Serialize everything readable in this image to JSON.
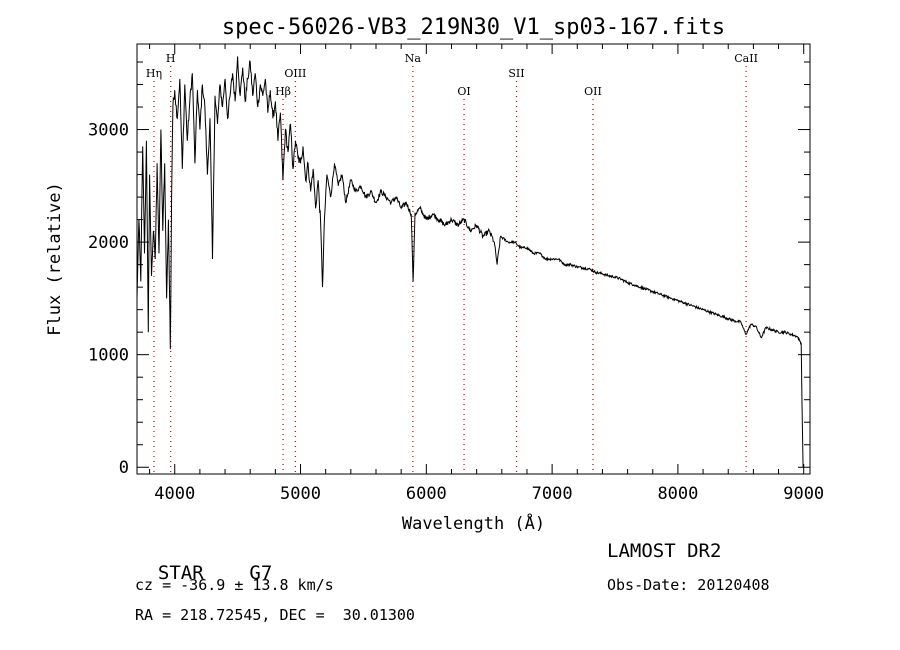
{
  "chart_data": {
    "type": "line",
    "title": "spec-56026-VB3_219N30_V1_sp03-167.fits",
    "xlabel": "Wavelength (Å)",
    "ylabel": "Flux (relative)",
    "xlim": [
      3700,
      9050
    ],
    "ylim": [
      -60,
      3760
    ],
    "x_ticks": [
      4000,
      5000,
      6000,
      7000,
      8000,
      9000
    ],
    "x_tick_labels": [
      "4000",
      "5000",
      "6000",
      "7000",
      "8000",
      "9000"
    ],
    "y_ticks": [
      0,
      1000,
      2000,
      3000
    ],
    "y_tick_labels": [
      "0",
      "1000",
      "2000",
      "3000"
    ],
    "line_color": "#000000",
    "marker_color": "#cc0000",
    "series": [
      {
        "name": "flux",
        "points": [
          [
            3700,
            1500
          ],
          [
            3715,
            2200
          ],
          [
            3730,
            1650
          ],
          [
            3745,
            2850
          ],
          [
            3760,
            1900
          ],
          [
            3775,
            2900
          ],
          [
            3790,
            1200
          ],
          [
            3800,
            2600
          ],
          [
            3815,
            1700
          ],
          [
            3830,
            2100
          ],
          [
            3845,
            1850
          ],
          [
            3860,
            2700
          ],
          [
            3875,
            1900
          ],
          [
            3890,
            3000
          ],
          [
            3905,
            2100
          ],
          [
            3920,
            2700
          ],
          [
            3935,
            1500
          ],
          [
            3950,
            2200
          ],
          [
            3965,
            1050
          ],
          [
            3975,
            2400
          ],
          [
            3985,
            3200
          ],
          [
            4000,
            3350
          ],
          [
            4020,
            3100
          ],
          [
            4040,
            3450
          ],
          [
            4060,
            2650
          ],
          [
            4080,
            3400
          ],
          [
            4100,
            2900
          ],
          [
            4120,
            3250
          ],
          [
            4140,
            3500
          ],
          [
            4160,
            2700
          ],
          [
            4180,
            3350
          ],
          [
            4200,
            3000
          ],
          [
            4220,
            3400
          ],
          [
            4240,
            3200
          ],
          [
            4260,
            2600
          ],
          [
            4280,
            3100
          ],
          [
            4300,
            1850
          ],
          [
            4320,
            3300
          ],
          [
            4340,
            3050
          ],
          [
            4360,
            3400
          ],
          [
            4380,
            3200
          ],
          [
            4400,
            3450
          ],
          [
            4420,
            3100
          ],
          [
            4440,
            3300
          ],
          [
            4460,
            3500
          ],
          [
            4480,
            3250
          ],
          [
            4500,
            3650
          ],
          [
            4520,
            3300
          ],
          [
            4540,
            3550
          ],
          [
            4560,
            3250
          ],
          [
            4580,
            3450
          ],
          [
            4600,
            3600
          ],
          [
            4620,
            3300
          ],
          [
            4640,
            3500
          ],
          [
            4660,
            3200
          ],
          [
            4680,
            3400
          ],
          [
            4700,
            3300
          ],
          [
            4720,
            3450
          ],
          [
            4740,
            3150
          ],
          [
            4760,
            3350
          ],
          [
            4780,
            3100
          ],
          [
            4800,
            3250
          ],
          [
            4820,
            2900
          ],
          [
            4840,
            3150
          ],
          [
            4860,
            2550
          ],
          [
            4880,
            3000
          ],
          [
            4900,
            2800
          ],
          [
            4920,
            3050
          ],
          [
            4940,
            2650
          ],
          [
            4960,
            2900
          ],
          [
            4980,
            2750
          ],
          [
            5000,
            2700
          ],
          [
            5020,
            2850
          ],
          [
            5040,
            2550
          ],
          [
            5060,
            2700
          ],
          [
            5080,
            2450
          ],
          [
            5100,
            2650
          ],
          [
            5120,
            2300
          ],
          [
            5140,
            2550
          ],
          [
            5160,
            2150
          ],
          [
            5175,
            1600
          ],
          [
            5190,
            2200
          ],
          [
            5210,
            2600
          ],
          [
            5240,
            2400
          ],
          [
            5270,
            2700
          ],
          [
            5300,
            2500
          ],
          [
            5330,
            2600
          ],
          [
            5360,
            2350
          ],
          [
            5400,
            2550
          ],
          [
            5440,
            2450
          ],
          [
            5480,
            2500
          ],
          [
            5520,
            2400
          ],
          [
            5560,
            2450
          ],
          [
            5600,
            2350
          ],
          [
            5640,
            2450
          ],
          [
            5680,
            2400
          ],
          [
            5720,
            2350
          ],
          [
            5760,
            2400
          ],
          [
            5800,
            2300
          ],
          [
            5840,
            2350
          ],
          [
            5880,
            2250
          ],
          [
            5895,
            1650
          ],
          [
            5910,
            2250
          ],
          [
            5950,
            2300
          ],
          [
            6000,
            2200
          ],
          [
            6050,
            2250
          ],
          [
            6100,
            2200
          ],
          [
            6150,
            2150
          ],
          [
            6200,
            2200
          ],
          [
            6250,
            2150
          ],
          [
            6300,
            2200
          ],
          [
            6350,
            2100
          ],
          [
            6400,
            2150
          ],
          [
            6450,
            2050
          ],
          [
            6500,
            2100
          ],
          [
            6540,
            2000
          ],
          [
            6563,
            1800
          ],
          [
            6590,
            2050
          ],
          [
            6650,
            2000
          ],
          [
            6700,
            2000
          ],
          [
            6750,
            1950
          ],
          [
            6800,
            1950
          ],
          [
            6850,
            1900
          ],
          [
            6900,
            1900
          ],
          [
            6950,
            1850
          ],
          [
            7000,
            1850
          ],
          [
            7050,
            1850
          ],
          [
            7100,
            1800
          ],
          [
            7150,
            1800
          ],
          [
            7200,
            1780
          ],
          [
            7250,
            1770
          ],
          [
            7300,
            1760
          ],
          [
            7350,
            1730
          ],
          [
            7400,
            1720
          ],
          [
            7450,
            1700
          ],
          [
            7500,
            1690
          ],
          [
            7550,
            1670
          ],
          [
            7600,
            1640
          ],
          [
            7650,
            1620
          ],
          [
            7700,
            1600
          ],
          [
            7750,
            1580
          ],
          [
            7800,
            1560
          ],
          [
            7850,
            1540
          ],
          [
            7900,
            1520
          ],
          [
            7950,
            1500
          ],
          [
            8000,
            1480
          ],
          [
            8050,
            1460
          ],
          [
            8100,
            1440
          ],
          [
            8150,
            1420
          ],
          [
            8200,
            1400
          ],
          [
            8250,
            1380
          ],
          [
            8300,
            1360
          ],
          [
            8350,
            1340
          ],
          [
            8400,
            1320
          ],
          [
            8450,
            1300
          ],
          [
            8500,
            1290
          ],
          [
            8540,
            1180
          ],
          [
            8580,
            1270
          ],
          [
            8620,
            1250
          ],
          [
            8662,
            1150
          ],
          [
            8700,
            1240
          ],
          [
            8750,
            1220
          ],
          [
            8800,
            1200
          ],
          [
            8850,
            1200
          ],
          [
            8900,
            1180
          ],
          [
            8950,
            1160
          ],
          [
            8980,
            1100
          ],
          [
            8990,
            300
          ],
          [
            8995,
            0
          ]
        ]
      }
    ],
    "spectral_lines": [
      {
        "label": "Hη",
        "wavelength": 3835,
        "row": "top2"
      },
      {
        "label": "H",
        "wavelength": 3968,
        "row": "top1"
      },
      {
        "label": "Hβ",
        "wavelength": 4861,
        "row": "top3"
      },
      {
        "label": "OIII",
        "wavelength": 4959,
        "row": "top2"
      },
      {
        "label": "Na",
        "wavelength": 5893,
        "row": "top1"
      },
      {
        "label": "OI",
        "wavelength": 6300,
        "row": "top3"
      },
      {
        "label": "SII",
        "wavelength": 6717,
        "row": "top2"
      },
      {
        "label": "OII",
        "wavelength": 7325,
        "row": "top3"
      },
      {
        "label": "CaII",
        "wavelength": 8542,
        "row": "top1"
      }
    ]
  },
  "info": {
    "object_class": "STAR",
    "subclass": "G7",
    "survey": "LAMOST DR2",
    "redshift_text": "cz = -36.9 ± 13.8 km/s",
    "obs_date_text": "Obs-Date: 20120408",
    "coords_text": "RA = 218.72545, DEC =  30.01300"
  }
}
